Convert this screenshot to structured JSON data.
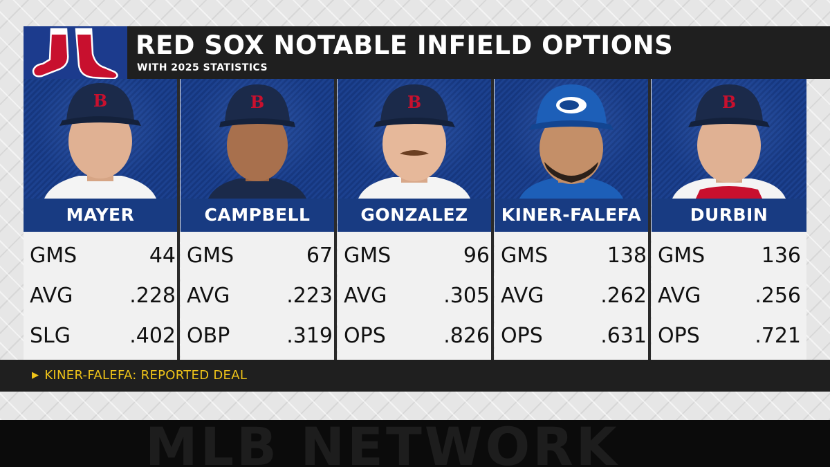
{
  "header": {
    "title": "RED SOX NOTABLE INFIELD OPTIONS",
    "subtitle": "WITH 2025 STATISTICS",
    "logo_icon": "red-sox-logo"
  },
  "players": [
    {
      "name": "MAYER",
      "cap": "red-sox-cap",
      "stats": [
        {
          "label": "GMS",
          "value": "44"
        },
        {
          "label": "AVG",
          "value": ".228"
        },
        {
          "label": "SLG",
          "value": ".402"
        }
      ]
    },
    {
      "name": "CAMPBELL",
      "cap": "red-sox-cap",
      "stats": [
        {
          "label": "GMS",
          "value": "67"
        },
        {
          "label": "AVG",
          "value": ".223"
        },
        {
          "label": "OBP",
          "value": ".319"
        }
      ]
    },
    {
      "name": "GONZALEZ",
      "cap": "red-sox-cap",
      "stats": [
        {
          "label": "GMS",
          "value": "96"
        },
        {
          "label": "AVG",
          "value": ".305"
        },
        {
          "label": "OPS",
          "value": ".826"
        }
      ]
    },
    {
      "name": "KINER-FALEFA",
      "cap": "blue-jays-cap",
      "stats": [
        {
          "label": "GMS",
          "value": "138"
        },
        {
          "label": "AVG",
          "value": ".262"
        },
        {
          "label": "OPS",
          "value": ".631"
        }
      ]
    },
    {
      "name": "DURBIN",
      "cap": "red-sox-cap",
      "stats": [
        {
          "label": "GMS",
          "value": "136"
        },
        {
          "label": "AVG",
          "value": ".256"
        },
        {
          "label": "OPS",
          "value": ".721"
        }
      ]
    }
  ],
  "footer": {
    "note": "KINER-FALEFA: REPORTED DEAL",
    "watermark": "MLB NETWORK"
  },
  "colors": {
    "header_bg": "#1f1f1f",
    "nameplate": "#183b82",
    "note_text": "#f0c419",
    "red_sox_red": "#c8102e",
    "red_sox_navy": "#1b2a4a",
    "blue_jays_blue": "#1d5fb8"
  }
}
